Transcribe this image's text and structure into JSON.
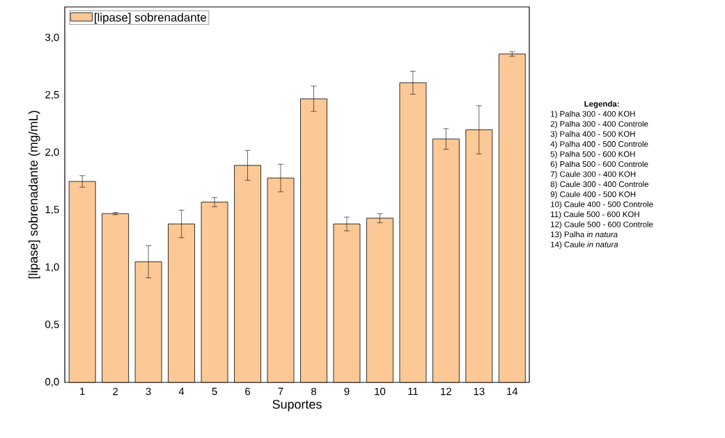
{
  "chart_data": {
    "type": "bar",
    "xlabel": "Suportes",
    "ylabel": "[lipase] sobrenadante (mg/mL)",
    "categories": [
      "1",
      "2",
      "3",
      "4",
      "5",
      "6",
      "7",
      "8",
      "9",
      "10",
      "11",
      "12",
      "13",
      "14"
    ],
    "series": [
      {
        "name": "[lipase] sobrenadante",
        "color": "#fbc896",
        "values": [
          1.75,
          1.47,
          1.05,
          1.38,
          1.57,
          1.89,
          1.78,
          2.47,
          1.38,
          1.43,
          2.61,
          2.12,
          2.2,
          2.86
        ],
        "errors": [
          0.05,
          0.01,
          0.14,
          0.12,
          0.04,
          0.13,
          0.12,
          0.11,
          0.06,
          0.04,
          0.1,
          0.09,
          0.21,
          0.02
        ]
      }
    ],
    "ylim": [
      0,
      3.27
    ],
    "yticks": [
      {
        "value": 0,
        "label": "0,0"
      },
      {
        "value": 0.5,
        "label": "0,5"
      },
      {
        "value": 1,
        "label": "1,0"
      },
      {
        "value": 1.5,
        "label": "1,5"
      },
      {
        "value": 2,
        "label": "2,0"
      },
      {
        "value": 2.5,
        "label": "2,5"
      },
      {
        "value": 3,
        "label": "3,0"
      }
    ],
    "grid": false,
    "legend": "top left",
    "annotations": [
      "**Legenda:**",
      "1) Palha 300 - 400 KOH",
      "2) Palha 300 - 400 Controle",
      "3) Palha 400 - 500 KOH",
      "4) Palha 400 - 500 Controle",
      "5) Palha 500 - 600 KOH",
      "6) Palha 500 - 600 Controle",
      "7) Caule 300 - 400 KOH",
      "8) Caule 300 - 400 Controle",
      "9) Caule 400 - 500 KOH",
      "10) Caule 400 - 500 Controle",
      "11) Caule 500 - 600 KOH",
      "12) Caule 500 - 600 Controle",
      "13) Palha *in natura*",
      "14) Caule *in natura*"
    ]
  }
}
